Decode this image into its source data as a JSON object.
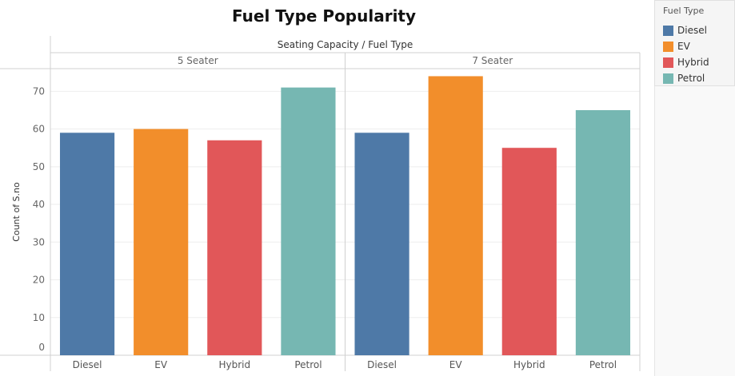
{
  "chart_data": {
    "type": "bar",
    "title": "Fuel Type Popularity",
    "header": "Seating Capacity / Fuel Type",
    "ylabel": "Count of S.no",
    "ylim": [
      0,
      76
    ],
    "yticks": [
      0,
      10,
      20,
      30,
      40,
      50,
      60,
      70
    ],
    "grid": true,
    "legend_position": "top-right",
    "panels": [
      {
        "label": "5 Seater",
        "categories": [
          "Diesel",
          "EV",
          "Hybrid",
          "Petrol"
        ],
        "values": [
          59,
          60,
          57,
          71
        ]
      },
      {
        "label": "7 Seater",
        "categories": [
          "Diesel",
          "EV",
          "Hybrid",
          "Petrol"
        ],
        "values": [
          59,
          74,
          55,
          65
        ]
      }
    ]
  },
  "legend": {
    "title": "Fuel Type",
    "items": [
      {
        "label": "Diesel",
        "color": "#4e79a7"
      },
      {
        "label": "EV",
        "color": "#f28e2b"
      },
      {
        "label": "Hybrid",
        "color": "#e15759"
      },
      {
        "label": "Petrol",
        "color": "#76b7b2"
      }
    ]
  }
}
